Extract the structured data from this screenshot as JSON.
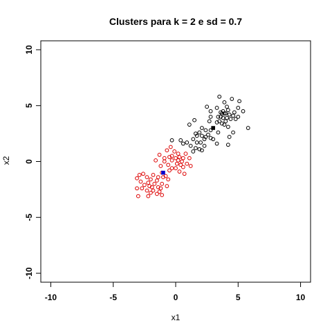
{
  "chart_data": {
    "type": "scatter",
    "title": "Clusters para k =  2  e sd =  0.7",
    "xlabel": "x1",
    "ylabel": "x2",
    "xlim": [
      -10.8,
      10.8
    ],
    "ylim": [
      -10.8,
      10.8
    ],
    "xticks": [
      -10,
      -5,
      0,
      5,
      10
    ],
    "yticks": [
      -10,
      -5,
      0,
      5,
      10
    ],
    "xtick_labels": [
      "-10",
      "-5",
      "0",
      "5",
      "10"
    ],
    "ytick_labels": [
      "-10",
      "-5",
      "0",
      "5",
      "10"
    ],
    "grid": false,
    "legend": "none",
    "series": [
      {
        "color": "#000000",
        "marker": "open-circle",
        "points": [
          [
            3.5,
            5.8
          ],
          [
            3.9,
            5.3
          ],
          [
            4.5,
            5.6
          ],
          [
            5.1,
            5.4
          ],
          [
            2.5,
            4.9
          ],
          [
            3.3,
            4.8
          ],
          [
            4.1,
            4.9
          ],
          [
            5.0,
            4.8
          ],
          [
            4.2,
            4.6
          ],
          [
            4.7,
            4.4
          ],
          [
            2.8,
            4.5
          ],
          [
            3.6,
            4.4
          ],
          [
            5.4,
            4.5
          ],
          [
            3.7,
            4.3
          ],
          [
            3.9,
            4.3
          ],
          [
            4.0,
            4.3
          ],
          [
            4.3,
            4.2
          ],
          [
            4.6,
            4.1
          ],
          [
            2.8,
            4.0
          ],
          [
            3.4,
            4.0
          ],
          [
            3.6,
            4.0
          ],
          [
            3.8,
            3.9
          ],
          [
            4.1,
            3.9
          ],
          [
            4.4,
            3.8
          ],
          [
            5.0,
            4.0
          ],
          [
            4.8,
            3.8
          ],
          [
            1.5,
            3.7
          ],
          [
            3.3,
            3.5
          ],
          [
            3.5,
            3.6
          ],
          [
            3.7,
            3.4
          ],
          [
            4.0,
            3.6
          ],
          [
            1.1,
            3.3
          ],
          [
            3.9,
            3.3
          ],
          [
            5.8,
            3.0
          ],
          [
            4.2,
            3.1
          ],
          [
            2.1,
            3.0
          ],
          [
            2.4,
            2.8
          ],
          [
            2.8,
            2.8
          ],
          [
            3.4,
            2.6
          ],
          [
            4.6,
            2.6
          ],
          [
            1.6,
            2.5
          ],
          [
            1.9,
            2.6
          ],
          [
            1.7,
            2.3
          ],
          [
            2.1,
            2.3
          ],
          [
            2.6,
            2.4
          ],
          [
            2.8,
            2.1
          ],
          [
            1.4,
            2.0
          ],
          [
            2.3,
            2.0
          ],
          [
            2.4,
            2.2
          ],
          [
            3.0,
            2.0
          ],
          [
            4.3,
            2.2
          ],
          [
            0.9,
            1.7
          ],
          [
            1.7,
            1.7
          ],
          [
            2.0,
            1.7
          ],
          [
            3.3,
            1.6
          ],
          [
            1.2,
            1.4
          ],
          [
            2.3,
            1.4
          ],
          [
            1.6,
            1.2
          ],
          [
            1.9,
            1.1
          ],
          [
            2.1,
            1.0
          ],
          [
            4.2,
            1.5
          ],
          [
            0.4,
            1.9
          ],
          [
            0.6,
            1.6
          ],
          [
            1.4,
            0.9
          ],
          [
            -0.3,
            1.9
          ],
          [
            2.7,
            3.6
          ],
          [
            3.8,
            4.5
          ]
        ]
      },
      {
        "color": "#dd0000",
        "marker": "open-circle",
        "points": [
          [
            -0.4,
            1.3
          ],
          [
            -0.7,
            1.0
          ],
          [
            -0.1,
            0.9
          ],
          [
            0.2,
            0.7
          ],
          [
            0.8,
            0.7
          ],
          [
            -1.3,
            0.6
          ],
          [
            -0.3,
            0.5
          ],
          [
            -0.5,
            0.4
          ],
          [
            -0.9,
            0.3
          ],
          [
            0.0,
            0.3
          ],
          [
            0.3,
            0.4
          ],
          [
            0.6,
            0.3
          ],
          [
            1.1,
            0.3
          ],
          [
            -1.6,
            0.1
          ],
          [
            -0.3,
            0.1
          ],
          [
            0.2,
            0.1
          ],
          [
            0.5,
            0.0
          ],
          [
            -0.9,
            0.0
          ],
          [
            0.1,
            -0.2
          ],
          [
            0.4,
            -0.3
          ],
          [
            0.6,
            -0.5
          ],
          [
            0.9,
            -0.2
          ],
          [
            1.2,
            -0.4
          ],
          [
            -0.6,
            -0.3
          ],
          [
            -1.2,
            -0.4
          ],
          [
            -0.3,
            -0.6
          ],
          [
            0.0,
            -0.6
          ],
          [
            -0.5,
            -0.8
          ],
          [
            0.3,
            -0.9
          ],
          [
            -1.1,
            -1.0
          ],
          [
            0.7,
            -1.1
          ],
          [
            -0.8,
            -1.3
          ],
          [
            -2.6,
            -1.1
          ],
          [
            -2.9,
            -1.2
          ],
          [
            -2.3,
            -1.4
          ],
          [
            -1.4,
            -1.4
          ],
          [
            -3.1,
            -1.5
          ],
          [
            -2.0,
            -1.6
          ],
          [
            -1.5,
            -1.7
          ],
          [
            -2.8,
            -1.8
          ],
          [
            -2.2,
            -1.9
          ],
          [
            -1.7,
            -2.0
          ],
          [
            -1.1,
            -2.0
          ],
          [
            -2.5,
            -2.1
          ],
          [
            -2.1,
            -2.2
          ],
          [
            -1.9,
            -2.3
          ],
          [
            -1.4,
            -2.3
          ],
          [
            -3.1,
            -2.4
          ],
          [
            -2.7,
            -2.4
          ],
          [
            -2.3,
            -2.6
          ],
          [
            -1.8,
            -2.6
          ],
          [
            -1.3,
            -2.7
          ],
          [
            -2.0,
            -2.8
          ],
          [
            -1.5,
            -2.9
          ],
          [
            -2.2,
            -3.1
          ],
          [
            -1.1,
            -3.0
          ],
          [
            -0.7,
            -2.2
          ],
          [
            -3.0,
            -3.1
          ],
          [
            -0.6,
            -1.6
          ],
          [
            -1.8,
            -1.2
          ],
          [
            -1.0,
            -1.4
          ],
          [
            -1.2,
            -2.4
          ]
        ]
      }
    ],
    "centers": [
      {
        "x": 3.0,
        "y": 3.0,
        "color": "#000000",
        "marker": "filled-square"
      },
      {
        "x": -1.0,
        "y": -1.0,
        "color": "#0000cc",
        "marker": "filled-square"
      }
    ]
  }
}
